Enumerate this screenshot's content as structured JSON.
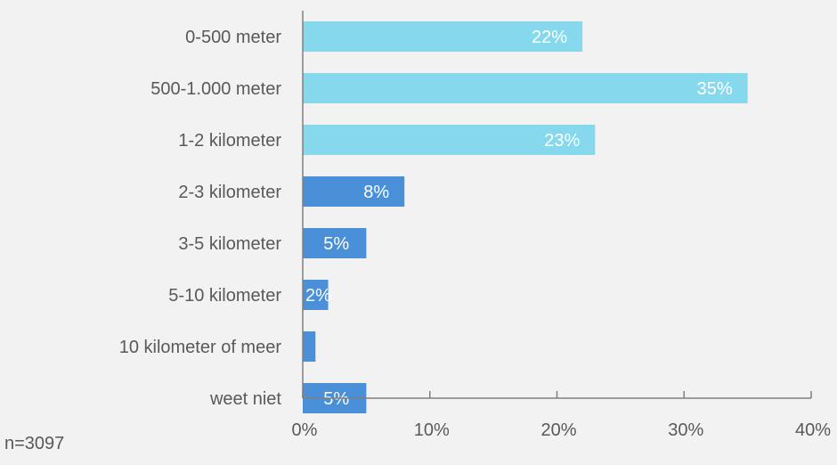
{
  "chart_data": {
    "type": "bar",
    "orientation": "horizontal",
    "categories": [
      "0-500 meter",
      "500-1.000 meter",
      "1-2 kilometer",
      "2-3 kilometer",
      "3-5 kilometer",
      "5-10 kilometer",
      "10 kilometer of meer",
      "weet niet"
    ],
    "values": [
      22,
      35,
      23,
      8,
      5,
      2,
      1,
      5
    ],
    "data_labels": [
      "22%",
      "35%",
      "23%",
      "8%",
      "5%",
      "2%",
      "",
      "5%"
    ],
    "bar_colors": [
      "#86d9ed",
      "#86d9ed",
      "#86d9ed",
      "#4a90d9",
      "#4a90d9",
      "#4a90d9",
      "#4a90d9",
      "#4a90d9"
    ],
    "xlim": [
      0,
      40
    ],
    "xticks": [
      0,
      10,
      20,
      30,
      40
    ],
    "xtick_labels": [
      "0%",
      "10%",
      "20%",
      "30%",
      "40%"
    ],
    "grid": false,
    "title": "",
    "xlabel": "",
    "ylabel": ""
  },
  "footnote": "n=3097",
  "colors": {
    "background": "#f2f2f2",
    "axis": "#7f7f7f",
    "label_text": "#595959",
    "data_label_text": "#ffffff"
  }
}
